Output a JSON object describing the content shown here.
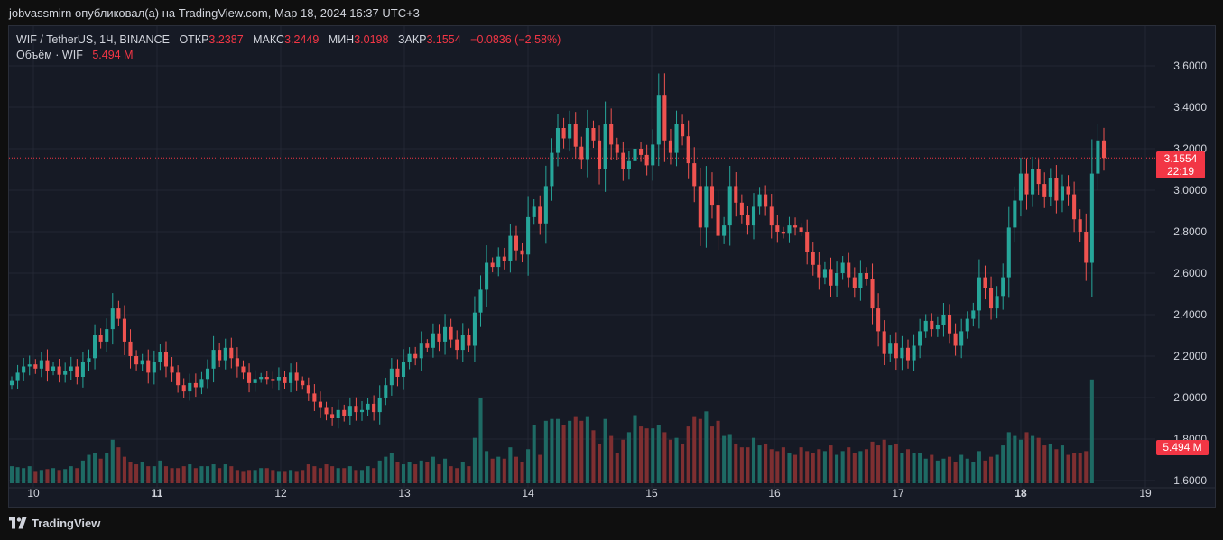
{
  "header": {
    "publish_line": "jobvassmirn опубликовал(а) на TradingView.com, Мар 18, 2024 16:37 UTC+3"
  },
  "legend": {
    "symbol": "WIF / TetherUS, 1Ч, BINANCE",
    "open_label": "ОТКР",
    "open": "3.2387",
    "high_label": "МАКС",
    "high": "3.2449",
    "low_label": "МИН",
    "low": "3.0198",
    "close_label": "ЗАКР",
    "close": "3.1554",
    "change": "−0.0836 (−2.58%)",
    "volume_label": "Объём · WIF",
    "volume": "5.494 M"
  },
  "price_tag": {
    "price": "3.1554",
    "countdown": "22:19"
  },
  "volume_tag": "5.494 M",
  "footer": {
    "brand": "TradingView"
  },
  "colors": {
    "up": "#26a69a",
    "down": "#ef5350",
    "up_vol": "#1e6a64",
    "down_vol": "#7e2f31",
    "bg": "#161a25",
    "grid": "#232734"
  },
  "chart_data": {
    "type": "candlestick",
    "title": "WIF / TetherUS, 1Ч, BINANCE",
    "interval": "1h",
    "ylim": [
      1.6,
      3.7
    ],
    "y_ticks": [
      "3.6000",
      "3.4000",
      "3.2000",
      "3.0000",
      "2.8000",
      "2.6000",
      "2.4000",
      "2.2000",
      "2.0000",
      "1.8000",
      "1.6000"
    ],
    "x_ticks": [
      {
        "label": "10",
        "bold": false
      },
      {
        "label": "11",
        "bold": true
      },
      {
        "label": "12",
        "bold": false
      },
      {
        "label": "13",
        "bold": false
      },
      {
        "label": "14",
        "bold": false
      },
      {
        "label": "15",
        "bold": false
      },
      {
        "label": "16",
        "bold": false
      },
      {
        "label": "17",
        "bold": false
      },
      {
        "label": "18",
        "bold": true
      },
      {
        "label": "19",
        "bold": false
      }
    ],
    "last_close": 3.1554,
    "close_series": [
      2.08,
      2.12,
      2.15,
      2.16,
      2.14,
      2.18,
      2.13,
      2.15,
      2.11,
      2.13,
      2.15,
      2.1,
      2.17,
      2.19,
      2.3,
      2.27,
      2.33,
      2.43,
      2.38,
      2.27,
      2.2,
      2.16,
      2.18,
      2.12,
      2.17,
      2.22,
      2.15,
      2.12,
      2.06,
      2.03,
      2.07,
      2.05,
      2.09,
      2.14,
      2.23,
      2.18,
      2.24,
      2.19,
      2.15,
      2.12,
      2.07,
      2.09,
      2.1,
      2.09,
      2.08,
      2.1,
      2.07,
      2.12,
      2.08,
      2.06,
      2.02,
      1.98,
      1.95,
      1.92,
      1.9,
      1.94,
      1.91,
      1.96,
      1.93,
      1.94,
      1.97,
      1.93,
      2.0,
      2.06,
      2.14,
      2.1,
      2.17,
      2.21,
      2.19,
      2.26,
      2.24,
      2.31,
      2.27,
      2.34,
      2.28,
      2.23,
      2.3,
      2.25,
      2.41,
      2.52,
      2.65,
      2.63,
      2.68,
      2.66,
      2.78,
      2.71,
      2.69,
      2.87,
      2.92,
      2.84,
      3.02,
      3.18,
      3.3,
      3.25,
      3.32,
      3.21,
      3.15,
      3.3,
      3.24,
      3.1,
      3.32,
      3.22,
      3.18,
      3.1,
      3.14,
      3.2,
      3.17,
      3.12,
      3.22,
      3.46,
      3.24,
      3.18,
      3.32,
      3.26,
      3.13,
      3.02,
      2.82,
      3.02,
      2.93,
      2.78,
      2.83,
      3.02,
      2.94,
      2.88,
      2.83,
      2.92,
      2.98,
      2.92,
      2.83,
      2.8,
      2.79,
      2.83,
      2.82,
      2.8,
      2.7,
      2.64,
      2.58,
      2.62,
      2.54,
      2.6,
      2.65,
      2.58,
      2.53,
      2.6,
      2.57,
      2.43,
      2.32,
      2.21,
      2.26,
      2.19,
      2.24,
      2.18,
      2.25,
      2.32,
      2.37,
      2.33,
      2.35,
      2.4,
      2.31,
      2.25,
      2.32,
      2.38,
      2.42,
      2.58,
      2.53,
      2.43,
      2.49,
      2.58,
      2.82,
      2.95,
      3.08,
      2.98,
      3.1,
      3.03,
      2.97,
      3.06,
      2.95,
      3.02,
      2.98,
      2.86,
      2.8,
      2.65,
      3.08,
      3.24,
      3.1554
    ],
    "volume_series": [
      0.9,
      0.85,
      0.8,
      0.9,
      0.6,
      0.7,
      0.75,
      0.8,
      0.7,
      0.75,
      0.9,
      0.8,
      1.2,
      1.5,
      1.6,
      1.3,
      1.6,
      2.3,
      1.9,
      1.4,
      1.1,
      1.0,
      1.1,
      0.9,
      0.9,
      1.2,
      0.9,
      0.8,
      0.8,
      0.9,
      1.0,
      0.8,
      0.9,
      0.9,
      1.0,
      0.8,
      1.0,
      0.9,
      0.7,
      0.6,
      0.7,
      0.7,
      0.8,
      0.8,
      0.7,
      0.6,
      0.6,
      0.7,
      0.6,
      0.7,
      1.0,
      0.9,
      0.8,
      1.0,
      0.9,
      0.8,
      0.8,
      0.9,
      0.7,
      0.7,
      0.9,
      0.8,
      1.2,
      1.4,
      1.6,
      1.1,
      1.0,
      1.1,
      1.0,
      1.2,
      1.1,
      1.4,
      1.0,
      1.3,
      0.9,
      0.8,
      1.1,
      0.9,
      2.4,
      4.5,
      1.7,
      1.3,
      1.4,
      1.3,
      1.9,
      1.4,
      1.1,
      1.8,
      3.1,
      1.5,
      3.3,
      3.4,
      3.4,
      3.1,
      3.3,
      3.5,
      3.3,
      3.5,
      2.8,
      2.1,
      3.4,
      2.5,
      1.6,
      2.3,
      2.7,
      3.6,
      3.0,
      2.9,
      2.9,
      3.1,
      2.7,
      2.3,
      2.4,
      2.1,
      3.0,
      3.5,
      3.4,
      3.8,
      3.0,
      3.3,
      2.5,
      2.6,
      2.1,
      1.9,
      1.9,
      2.4,
      2.0,
      2.1,
      1.8,
      1.7,
      1.9,
      1.6,
      1.5,
      1.9,
      1.7,
      1.6,
      1.8,
      1.7,
      2.0,
      1.5,
      1.7,
      1.9,
      1.6,
      1.7,
      1.8,
      2.2,
      2.0,
      2.3,
      2.0,
      2.1,
      1.6,
      1.8,
      1.6,
      1.6,
      1.3,
      1.5,
      1.2,
      1.3,
      1.4,
      1.1,
      1.5,
      1.3,
      1.1,
      1.7,
      1.2,
      1.4,
      1.5,
      2.0,
      2.7,
      2.5,
      2.3,
      2.7,
      2.5,
      2.4,
      2.0,
      2.1,
      1.8,
      2.0,
      1.5,
      1.6,
      1.6,
      1.7,
      5.494
    ]
  }
}
